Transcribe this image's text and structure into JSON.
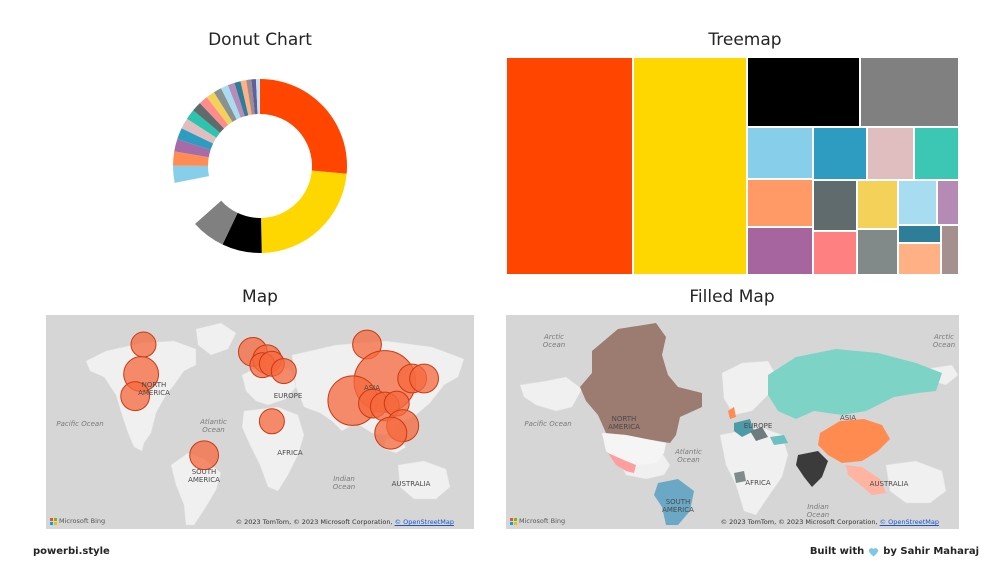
{
  "donut": {
    "title": "Donut Chart",
    "chart_data": {
      "type": "pie",
      "series": [
        {
          "color": "#FF4500",
          "value": 25
        },
        {
          "color": "#FFD700",
          "value": 22
        },
        {
          "color": "#000000",
          "value": 7
        },
        {
          "color": "#808080",
          "value": 6
        },
        {
          "color": "#FFFFFF",
          "value": 8
        },
        {
          "color": "#87CEEB",
          "value": 3
        },
        {
          "color": "#FF8C55",
          "value": 2.5
        },
        {
          "color": "#A66CA8",
          "value": 2.2
        },
        {
          "color": "#2E9BC0",
          "value": 2
        },
        {
          "color": "#E0BDBE",
          "value": 1.9
        },
        {
          "color": "#2DC4AF",
          "value": 1.8
        },
        {
          "color": "#5F6B6D",
          "value": 1.7
        },
        {
          "color": "#FF8C8C",
          "value": 1.6
        },
        {
          "color": "#F4D25A",
          "value": 1.5
        },
        {
          "color": "#8A9291",
          "value": 1.4
        },
        {
          "color": "#A8DCF0",
          "value": 1.3
        },
        {
          "color": "#B88CB8",
          "value": 1.2
        },
        {
          "color": "#2F7E99",
          "value": 1.1
        },
        {
          "color": "#FFB085",
          "value": 1.0
        },
        {
          "color": "#A08C8C",
          "value": 0.9
        },
        {
          "color": "#5E5EA0",
          "value": 0.8
        },
        {
          "color": "#C6E2F0",
          "value": 0.7
        }
      ]
    }
  },
  "treemap": {
    "title": "Treemap",
    "chart_data": {
      "type": "treemap",
      "tiles": [
        {
          "color": "#FF4500",
          "value": 28
        },
        {
          "color": "#FFD700",
          "value": 25
        },
        {
          "color": "#000000",
          "value": 8
        },
        {
          "color": "#808080",
          "value": 7
        },
        {
          "color": "#87CEEB",
          "value": 3.5
        },
        {
          "color": "#FF9966",
          "value": 3.2
        },
        {
          "color": "#A6659E",
          "value": 3.2
        },
        {
          "color": "#2E9BC0",
          "value": 2.9
        },
        {
          "color": "#E0BDBE",
          "value": 2.5
        },
        {
          "color": "#3CC7B4",
          "value": 2.4
        },
        {
          "color": "#5F6B6D",
          "value": 2.3
        },
        {
          "color": "#FF8080",
          "value": 2.0
        },
        {
          "color": "#F4D25A",
          "value": 2.0
        },
        {
          "color": "#818A89",
          "value": 1.9
        },
        {
          "color": "#A8DCF0",
          "value": 1.8
        },
        {
          "color": "#B58BB5",
          "value": 1.0
        },
        {
          "color": "#2F7E99",
          "value": 0.8
        },
        {
          "color": "#FFB085",
          "value": 1.4
        },
        {
          "color": "#A68F8F",
          "value": 0.9
        }
      ]
    }
  },
  "map": {
    "title": "Map",
    "labels": {
      "north_america": "NORTH\nAMERICA",
      "south_america": "SOUTH\nAMERICA",
      "europe": "EUROPE",
      "asia": "ASIA",
      "africa": "AFRICA",
      "australia": "AUSTRALIA",
      "pacific": "Pacific Ocean",
      "atlantic": "Atlantic\nOcean",
      "indian": "Indian\nOcean"
    },
    "bing": "Microsoft Bing",
    "attribution": "© 2023 TomTom, © 2023 Microsoft Corporation,",
    "attribution_link": "© OpenStreetMap",
    "bubbles": [
      {
        "lon": -98,
        "lat": 60,
        "size": 2
      },
      {
        "lon": -100,
        "lat": 40,
        "size": 5
      },
      {
        "lon": -105,
        "lat": 25,
        "size": 3
      },
      {
        "lon": -47,
        "lat": -15,
        "size": 3
      },
      {
        "lon": -6,
        "lat": 55,
        "size": 3
      },
      {
        "lon": 6,
        "lat": 50,
        "size": 3
      },
      {
        "lon": 2,
        "lat": 46,
        "size": 2
      },
      {
        "lon": 10,
        "lat": 47,
        "size": 2
      },
      {
        "lon": 20,
        "lat": 42,
        "size": 2
      },
      {
        "lon": 10,
        "lat": 8,
        "size": 2
      },
      {
        "lon": 90,
        "lat": 60,
        "size": 3
      },
      {
        "lon": 105,
        "lat": 35,
        "size": 20
      },
      {
        "lon": 78,
        "lat": 22,
        "size": 12
      },
      {
        "lon": 95,
        "lat": 20,
        "size": 3
      },
      {
        "lon": 105,
        "lat": 18,
        "size": 3
      },
      {
        "lon": 115,
        "lat": 20,
        "size": 2
      },
      {
        "lon": 128,
        "lat": 37,
        "size": 3
      },
      {
        "lon": 138,
        "lat": 37,
        "size": 3
      },
      {
        "lon": 120,
        "lat": 5,
        "size": 4
      },
      {
        "lon": 110,
        "lat": 0,
        "size": 4
      }
    ]
  },
  "filled": {
    "title": "Filled Map",
    "labels": {
      "arctic_left": "Arctic\nOcean",
      "arctic_right": "Arctic\nOcean",
      "north_america": "NORTH\nAMERICA",
      "south_america": "SOUTH\nAMERICA",
      "europe": "EUROPE",
      "asia": "ASIA",
      "africa": "AFRICA",
      "australia": "AUSTRALIA",
      "pacific": "Pacific Ocean",
      "atlantic": "Atlantic\nOcean",
      "indian": "Indian\nOcean"
    },
    "bing": "Microsoft Bing",
    "attribution": "© 2023 TomTom, © 2023 Microsoft Corporation,",
    "attribution_link": "© OpenStreetMap",
    "colors": {
      "canada_us": "#9C7B71",
      "russia": "#7ED3C7",
      "china": "#FF8B50",
      "india": "#3B3B3B",
      "brazil": "#6BA8C6",
      "mexico": "#FF9E9E"
    }
  },
  "footer": {
    "left": "powerbi.style",
    "right_prefix": "Built with",
    "right_suffix": "by Sahir Maharaj",
    "heart_color": "#7EC8E3"
  }
}
